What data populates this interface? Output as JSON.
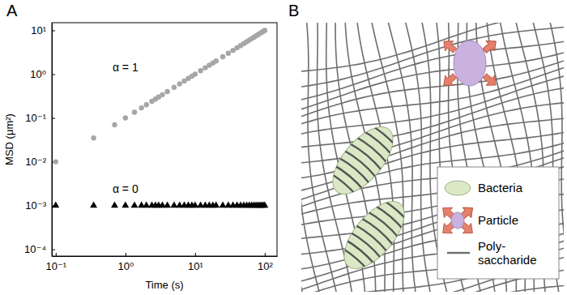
{
  "panel_labels": [
    "A",
    "B"
  ],
  "chart_data": {
    "type": "scatter",
    "x_label": "Time (s)",
    "y_label": "MSD (μm²)",
    "log": true,
    "x": [
      0.1,
      0.35,
      0.7,
      1.0,
      1.35,
      1.7,
      2.0,
      2.4,
      2.7,
      3.0,
      3.4,
      4,
      5,
      6,
      7,
      8,
      9,
      10,
      12,
      14,
      16,
      18,
      20,
      25,
      30,
      35,
      40,
      45,
      50,
      55,
      60,
      65,
      70,
      75,
      80,
      85,
      90,
      95,
      100
    ],
    "series": [
      {
        "name": "α = 1",
        "color": "#a6a6a6",
        "marker": "circle",
        "values": [
          0.01,
          0.035,
          0.07,
          0.1,
          0.135,
          0.17,
          0.2,
          0.24,
          0.27,
          0.3,
          0.34,
          0.4,
          0.5,
          0.6,
          0.7,
          0.8,
          0.9,
          1,
          1.2,
          1.4,
          1.6,
          1.8,
          2,
          2.5,
          3,
          3.5,
          4,
          4.5,
          5,
          5.5,
          6,
          6.5,
          7,
          7.5,
          8,
          8.5,
          9,
          9.5,
          10
        ]
      },
      {
        "name": "α = 0",
        "color": "#000000",
        "marker": "triangle",
        "values": [
          0.001,
          0.001,
          0.001,
          0.001,
          0.001,
          0.001,
          0.001,
          0.001,
          0.001,
          0.001,
          0.001,
          0.001,
          0.001,
          0.001,
          0.001,
          0.001,
          0.001,
          0.001,
          0.001,
          0.001,
          0.001,
          0.001,
          0.001,
          0.001,
          0.001,
          0.001,
          0.001,
          0.001,
          0.001,
          0.001,
          0.001,
          0.001,
          0.001,
          0.001,
          0.001,
          0.001,
          0.001,
          0.001,
          0.001
        ]
      }
    ],
    "xlim": [
      0.088,
      150
    ],
    "ylim": [
      7e-05,
      15
    ],
    "xticks": [
      {
        "value": 0.1,
        "label": "10⁻¹"
      },
      {
        "value": 1,
        "label": "10⁰"
      },
      {
        "value": 10,
        "label": "10¹"
      },
      {
        "value": 100,
        "label": "10²"
      }
    ],
    "yticks": [
      {
        "value": 0.0001,
        "label": "10⁻⁴"
      },
      {
        "value": 0.001,
        "label": "10⁻³"
      },
      {
        "value": 0.01,
        "label": "10⁻²"
      },
      {
        "value": 0.1,
        "label": "10⁻¹"
      },
      {
        "value": 1,
        "label": "10⁰"
      },
      {
        "value": 10,
        "label": "10¹"
      }
    ]
  },
  "diagram": {
    "legend": [
      {
        "label": "Bacteria"
      },
      {
        "label": "Particle"
      },
      {
        "label": "Poly-saccharide"
      }
    ]
  }
}
